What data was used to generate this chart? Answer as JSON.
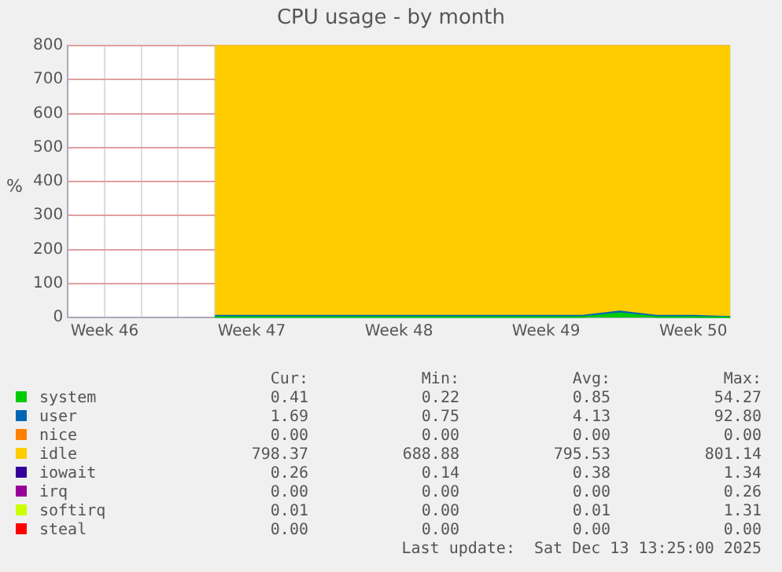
{
  "chart_data": {
    "type": "area",
    "title": "CPU usage - by month",
    "ylabel": "%",
    "stacked": true,
    "legend": "bottom",
    "grid": true,
    "categories": [
      null,
      "Week 46",
      null,
      null,
      null,
      "Week 47",
      null,
      null,
      null,
      "Week 48",
      null,
      null,
      null,
      "Week 49",
      null,
      null,
      null,
      "Week 50",
      null
    ],
    "ylim": [
      0,
      800
    ],
    "yticks": [
      0,
      100,
      200,
      300,
      400,
      500,
      600,
      700,
      800
    ],
    "series": [
      {
        "name": "system",
        "color": "#00cc00",
        "values": [
          null,
          null,
          null,
          null,
          1,
          1,
          1,
          1,
          1,
          1,
          1,
          1,
          1,
          1,
          1,
          12,
          1,
          1,
          0
        ]
      },
      {
        "name": "user",
        "color": "#0066b3",
        "values": [
          null,
          null,
          null,
          null,
          4,
          4,
          4,
          4,
          4,
          4,
          4,
          4,
          4,
          4,
          4,
          6,
          4,
          4,
          2
        ]
      },
      {
        "name": "nice",
        "color": "#ff8000",
        "values": [
          null,
          null,
          null,
          null,
          null,
          null,
          null,
          null,
          null,
          null,
          null,
          null,
          null,
          null,
          null,
          null,
          null,
          null,
          null
        ]
      },
      {
        "name": "idle",
        "color": "#ffcc00",
        "values": [
          null,
          null,
          null,
          null,
          794,
          794,
          794,
          794,
          794,
          794,
          794,
          794,
          794,
          794,
          794,
          781,
          794,
          794,
          797
        ]
      },
      {
        "name": "iowait",
        "color": "#330099",
        "values": [
          null,
          null,
          null,
          null,
          null,
          null,
          null,
          null,
          null,
          null,
          null,
          null,
          null,
          null,
          null,
          null,
          null,
          null,
          null
        ]
      },
      {
        "name": "irq",
        "color": "#990099",
        "values": [
          null,
          null,
          null,
          null,
          null,
          null,
          null,
          null,
          null,
          null,
          null,
          null,
          null,
          null,
          null,
          null,
          null,
          null,
          null
        ]
      },
      {
        "name": "softirq",
        "color": "#ccff00",
        "values": [
          null,
          null,
          null,
          null,
          null,
          null,
          null,
          null,
          null,
          null,
          null,
          null,
          null,
          null,
          null,
          null,
          null,
          null,
          null
        ]
      },
      {
        "name": "steal",
        "color": "#ff0000",
        "values": [
          null,
          null,
          null,
          null,
          null,
          null,
          null,
          null,
          null,
          null,
          null,
          null,
          null,
          null,
          null,
          null,
          null,
          null,
          null
        ]
      }
    ],
    "annotations": [
      "Cur:",
      "Min:",
      "Avg:",
      "Max:",
      "0.41",
      "0.22",
      "0.85",
      "54.27",
      "1.69",
      "0.75",
      "4.13",
      "92.80",
      "0.00",
      "0.00",
      "0.00",
      "0.00",
      "798.37",
      "688.88",
      "795.53",
      "801.14",
      "0.26",
      "0.14",
      "0.38",
      "1.34",
      "0.00",
      "0.00",
      "0.00",
      "0.26",
      "0.01",
      "0.00",
      "0.01",
      "1.31",
      "0.00",
      "0.00",
      "0.00",
      "0.00",
      "Last update:  Sat Dec 13 13:25:00 2025"
    ]
  }
}
